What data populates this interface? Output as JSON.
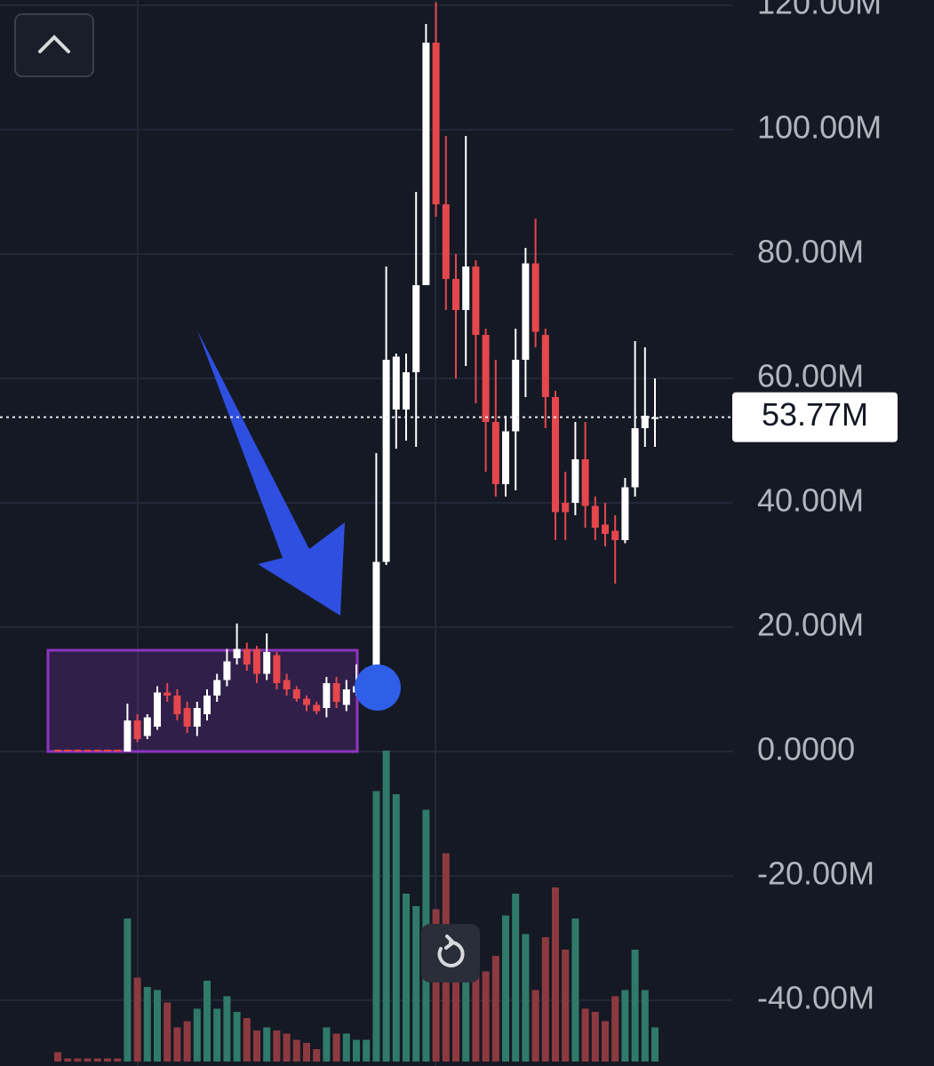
{
  "chart_data": {
    "type": "candlestick",
    "categories": [
      null,
      null,
      null,
      null,
      null,
      null,
      null,
      null,
      null,
      null,
      null,
      null,
      null,
      null,
      null,
      null,
      null,
      null,
      null,
      null,
      null,
      null,
      null,
      null,
      null,
      null,
      null,
      null,
      null,
      null,
      null,
      null,
      null,
      null,
      null,
      null,
      null,
      null,
      null,
      null,
      null,
      null,
      null,
      null,
      null,
      null,
      null,
      null,
      null,
      null,
      null,
      null,
      null,
      null,
      null,
      null,
      null,
      null,
      null,
      null,
      null
    ],
    "open": [
      0.3,
      0.3,
      0.3,
      0.3,
      0.3,
      0.3,
      0.3,
      0,
      5,
      2.5,
      4,
      9.5,
      9,
      7,
      4,
      6,
      9,
      11.5,
      15,
      16.5,
      16.5,
      12.5,
      15.5,
      11.5,
      10,
      8.5,
      7.5,
      7,
      11,
      7.5,
      9.5,
      10.5,
      11,
      30.5,
      55,
      55,
      61,
      75,
      114,
      88,
      76,
      71,
      78,
      67,
      53,
      43,
      51.5,
      63,
      78.5,
      67,
      57,
      40,
      40,
      47,
      39.5,
      36.5,
      35.5,
      34,
      42.5,
      52,
      53.5
    ],
    "high": [
      0.3,
      0.3,
      0.3,
      0.3,
      0.3,
      0.3,
      0.3,
      7.7,
      6,
      6,
      10.5,
      11,
      10,
      8,
      8,
      10,
      12.5,
      16.5,
      20.6,
      17.5,
      17,
      19,
      16,
      12.5,
      10.5,
      9,
      8,
      12,
      12,
      11.5,
      14,
      13.5,
      48,
      78,
      64,
      64,
      90,
      117,
      120.5,
      99,
      80,
      99,
      79,
      68,
      63,
      54,
      68,
      81,
      85.7,
      68,
      58,
      45,
      53,
      53,
      41,
      40,
      38,
      44,
      66,
      65,
      60
    ],
    "low": [
      0,
      0,
      0,
      0,
      0,
      0,
      0,
      0,
      1.5,
      2,
      3.5,
      8,
      5,
      3,
      2.5,
      5,
      8,
      10.5,
      14,
      13,
      11,
      11.5,
      10,
      9,
      8,
      6.5,
      6,
      5.5,
      7,
      6.5,
      9,
      10,
      10,
      30,
      48.7,
      50,
      49,
      75,
      86,
      71,
      60,
      62,
      56,
      45,
      41,
      41,
      42,
      57,
      65,
      52,
      34,
      34,
      38,
      36,
      34,
      33,
      27,
      33.5,
      41,
      49,
      49
    ],
    "close": [
      0,
      0,
      0,
      0,
      0,
      0,
      0,
      5,
      2,
      5.5,
      9.5,
      9,
      6,
      4,
      7,
      9,
      11.5,
      14.5,
      16.5,
      14,
      12.5,
      16,
      11,
      10,
      8.5,
      7.5,
      6.5,
      11,
      8,
      10,
      10.5,
      11,
      30.5,
      63,
      63.5,
      61,
      75,
      114,
      88,
      76,
      71,
      78,
      67,
      53,
      43,
      51.5,
      63,
      78.5,
      67.5,
      57,
      38.5,
      38.5,
      47,
      39.5,
      36,
      35,
      34,
      42.5,
      52,
      54,
      53.77
    ],
    "volume": [
      3,
      1,
      1,
      1,
      1,
      1,
      1,
      46,
      27,
      24,
      23,
      19,
      11,
      13,
      17,
      26,
      17,
      21,
      16,
      14,
      10,
      11,
      10,
      9,
      7,
      6,
      4,
      11,
      9,
      9,
      7,
      7,
      87,
      100,
      86,
      54,
      50,
      81,
      49,
      67,
      41,
      36,
      33,
      29,
      34,
      47,
      54,
      41,
      23,
      40,
      56,
      36,
      46,
      17,
      16,
      13,
      21,
      23,
      36,
      23,
      11
    ],
    "volume_lim": [
      0,
      100
    ],
    "up_color": "#ffffff",
    "down_color": "#e5474c",
    "volume_up_color": "#2f7a69",
    "volume_down_color": "#8c3a40",
    "ylim": [
      -50.57,
      120.86
    ],
    "yticks": [
      {
        "value": -40,
        "label": "-40.00M"
      },
      {
        "value": -20,
        "label": "-20.00M"
      },
      {
        "value": 0,
        "label": "0.0000"
      },
      {
        "value": 20,
        "label": "20.00M"
      },
      {
        "value": 40,
        "label": "40.00M"
      },
      {
        "value": 60,
        "label": "60.00M"
      },
      {
        "value": 80,
        "label": "80.00M"
      },
      {
        "value": 100,
        "label": "100.00M"
      },
      {
        "value": 120,
        "label": "120.00M"
      }
    ],
    "grid": true,
    "last_price": {
      "value": 53.77,
      "label": "53.77M"
    }
  }
}
